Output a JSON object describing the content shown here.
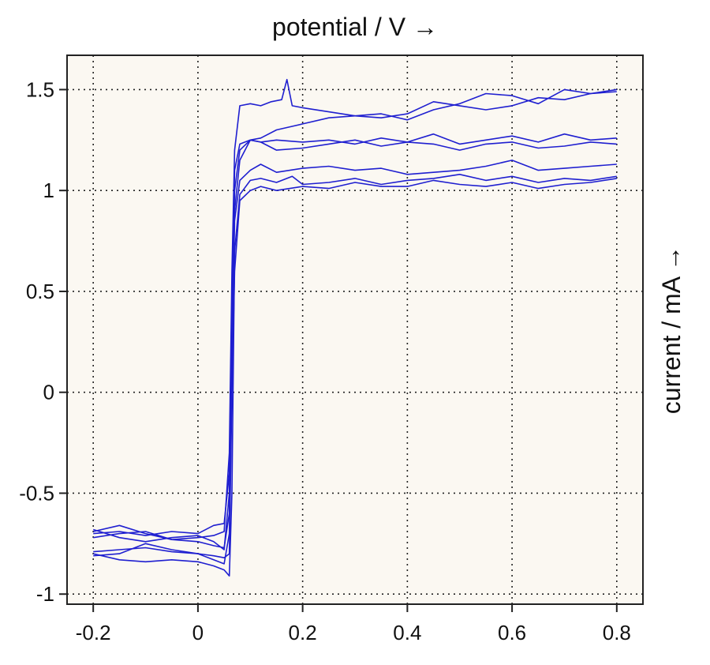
{
  "chart_data": {
    "type": "line",
    "title": "",
    "xlabel": "potential / V →",
    "ylabel": "current / mA →",
    "xlim": [
      -0.25,
      0.85
    ],
    "ylim": [
      -1.05,
      1.67
    ],
    "xticks": [
      -0.2,
      0,
      0.2,
      0.4,
      0.6,
      0.8
    ],
    "xtick_labels": [
      "-0.2",
      "0",
      "0.2",
      "0.4",
      "0.6",
      "0.8"
    ],
    "yticks": [
      -1,
      -0.5,
      0,
      0.5,
      1,
      1.5
    ],
    "ytick_labels": [
      "-1",
      "-0.5",
      "0",
      "0.5",
      "1",
      "1.5"
    ],
    "grid": true,
    "grid_style": "dotted",
    "background_color": "#fbf8f2",
    "line_color": "#1f1fd0",
    "series": [
      {
        "x": [
          -0.2,
          -0.15,
          -0.1,
          -0.05,
          0,
          0.03,
          0.05,
          0.06,
          0.065,
          0.07,
          0.08,
          0.1,
          0.12,
          0.14,
          0.16,
          0.17,
          0.18,
          0.2,
          0.3,
          0.35,
          0.4,
          0.45,
          0.5,
          0.55,
          0.6,
          0.65,
          0.7,
          0.75,
          0.8
        ],
        "y": [
          -0.69,
          -0.66,
          -0.7,
          -0.73,
          -0.72,
          -0.71,
          -0.69,
          -0.3,
          0.6,
          1.2,
          1.42,
          1.43,
          1.42,
          1.44,
          1.45,
          1.55,
          1.42,
          1.41,
          1.37,
          1.36,
          1.38,
          1.44,
          1.42,
          1.4,
          1.42,
          1.46,
          1.45,
          1.48,
          1.49
        ]
      },
      {
        "x": [
          -0.2,
          -0.15,
          -0.1,
          -0.05,
          0,
          0.03,
          0.05,
          0.06,
          0.065,
          0.07,
          0.08,
          0.1,
          0.12,
          0.15,
          0.2,
          0.25,
          0.3,
          0.35,
          0.4,
          0.45,
          0.5,
          0.55,
          0.6,
          0.65,
          0.7,
          0.75,
          0.8
        ],
        "y": [
          -0.7,
          -0.69,
          -0.71,
          -0.69,
          -0.7,
          -0.66,
          -0.65,
          -0.4,
          0.5,
          1.1,
          1.23,
          1.25,
          1.26,
          1.3,
          1.33,
          1.36,
          1.37,
          1.38,
          1.35,
          1.4,
          1.43,
          1.48,
          1.47,
          1.43,
          1.5,
          1.48,
          1.5
        ]
      },
      {
        "x": [
          -0.2,
          -0.15,
          -0.1,
          -0.05,
          0,
          0.03,
          0.05,
          0.06,
          0.065,
          0.07,
          0.08,
          0.1,
          0.12,
          0.15,
          0.2,
          0.25,
          0.3,
          0.35,
          0.4,
          0.45,
          0.5,
          0.55,
          0.6,
          0.65,
          0.7,
          0.75,
          0.8
        ],
        "y": [
          -0.68,
          -0.72,
          -0.74,
          -0.72,
          -0.71,
          -0.74,
          -0.78,
          -0.5,
          0.4,
          1.0,
          1.2,
          1.25,
          1.24,
          1.25,
          1.24,
          1.25,
          1.23,
          1.26,
          1.24,
          1.28,
          1.23,
          1.25,
          1.27,
          1.24,
          1.28,
          1.25,
          1.26
        ]
      },
      {
        "x": [
          -0.2,
          -0.15,
          -0.1,
          -0.05,
          0,
          0.03,
          0.05,
          0.06,
          0.065,
          0.07,
          0.08,
          0.1,
          0.12,
          0.15,
          0.2,
          0.25,
          0.3,
          0.35,
          0.4,
          0.45,
          0.5,
          0.55,
          0.6,
          0.65,
          0.7,
          0.75,
          0.8
        ],
        "y": [
          -0.72,
          -0.7,
          -0.69,
          -0.73,
          -0.74,
          -0.76,
          -0.77,
          -0.6,
          0.3,
          0.9,
          1.15,
          1.25,
          1.24,
          1.2,
          1.21,
          1.23,
          1.25,
          1.22,
          1.24,
          1.23,
          1.2,
          1.23,
          1.24,
          1.21,
          1.22,
          1.24,
          1.23
        ]
      },
      {
        "x": [
          -0.2,
          -0.15,
          -0.1,
          -0.05,
          0,
          0.03,
          0.05,
          0.06,
          0.065,
          0.07,
          0.08,
          0.1,
          0.12,
          0.15,
          0.2,
          0.25,
          0.3,
          0.35,
          0.4,
          0.45,
          0.5,
          0.55,
          0.6,
          0.65,
          0.7,
          0.75,
          0.8
        ],
        "y": [
          -0.81,
          -0.8,
          -0.75,
          -0.78,
          -0.8,
          -0.83,
          -0.85,
          -0.7,
          0.2,
          0.85,
          1.05,
          1.1,
          1.13,
          1.09,
          1.11,
          1.12,
          1.1,
          1.11,
          1.08,
          1.09,
          1.1,
          1.12,
          1.15,
          1.1,
          1.11,
          1.12,
          1.13
        ]
      },
      {
        "x": [
          -0.2,
          -0.15,
          -0.1,
          -0.05,
          0,
          0.03,
          0.05,
          0.06,
          0.065,
          0.07,
          0.08,
          0.1,
          0.12,
          0.15,
          0.18,
          0.2,
          0.25,
          0.3,
          0.35,
          0.4,
          0.45,
          0.5,
          0.55,
          0.6,
          0.65,
          0.7,
          0.75,
          0.8
        ],
        "y": [
          -0.8,
          -0.83,
          -0.84,
          -0.83,
          -0.84,
          -0.86,
          -0.88,
          -0.91,
          -0.5,
          0.7,
          0.98,
          1.05,
          1.06,
          1.04,
          1.07,
          1.03,
          1.04,
          1.06,
          1.03,
          1.05,
          1.06,
          1.08,
          1.05,
          1.07,
          1.04,
          1.06,
          1.05,
          1.07
        ]
      },
      {
        "x": [
          -0.2,
          -0.15,
          -0.1,
          -0.05,
          0,
          0.03,
          0.05,
          0.06,
          0.065,
          0.07,
          0.08,
          0.1,
          0.12,
          0.15,
          0.2,
          0.25,
          0.3,
          0.35,
          0.4,
          0.45,
          0.5,
          0.55,
          0.6,
          0.65,
          0.7,
          0.75,
          0.8
        ],
        "y": [
          -0.79,
          -0.78,
          -0.77,
          -0.79,
          -0.8,
          -0.81,
          -0.82,
          -0.8,
          0.0,
          0.6,
          0.95,
          1.0,
          1.02,
          1.0,
          1.02,
          1.01,
          1.04,
          1.02,
          1.02,
          1.05,
          1.03,
          1.02,
          1.04,
          1.01,
          1.03,
          1.04,
          1.06
        ]
      }
    ]
  }
}
